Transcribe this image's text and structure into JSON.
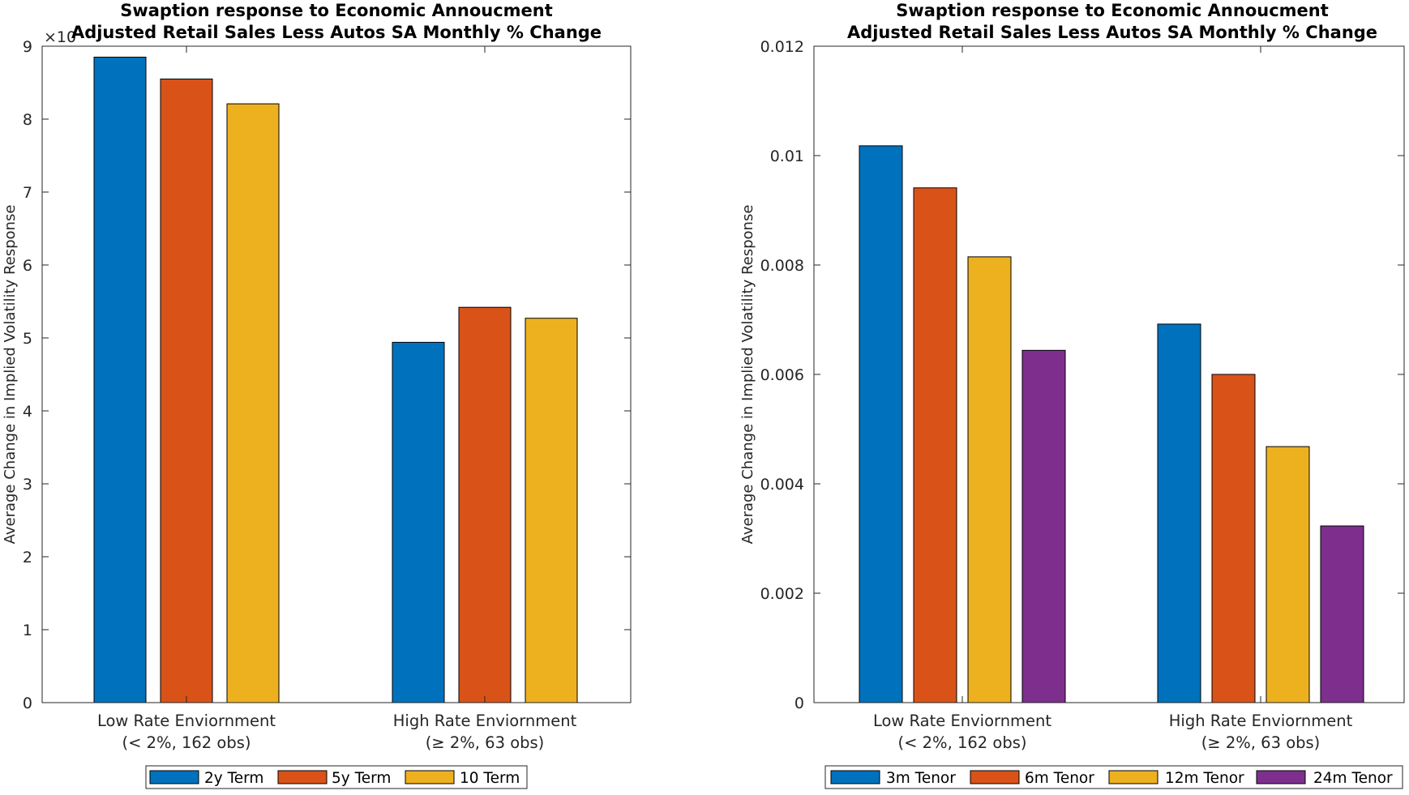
{
  "chart_data": [
    {
      "type": "bar",
      "title": [
        "Swaption response to Economic Annoucment",
        "Adjusted Retail Sales Less Autos SA Monthly % Change"
      ],
      "xlabel": "",
      "ylabel": "Average Change in Implied Volatility Response",
      "y_exponent_label": "×10",
      "categories": [
        [
          "Low Rate Enviornment",
          "(< 2%, 162 obs)"
        ],
        [
          "High Rate Enviornment",
          "(≥ 2%, 63 obs)"
        ]
      ],
      "ylim": [
        0,
        9
      ],
      "yticks": [
        0,
        1,
        2,
        3,
        4,
        5,
        6,
        7,
        8,
        9
      ],
      "ytick_labels": [
        "0",
        "1",
        "2",
        "3",
        "4",
        "5",
        "6",
        "7",
        "8",
        "9"
      ],
      "grid": false,
      "legend_position": "bottom",
      "series": [
        {
          "name": "2y Term",
          "color": "#0072BD",
          "values": [
            8.85,
            4.94
          ]
        },
        {
          "name": "5y Term",
          "color": "#D95319",
          "values": [
            8.55,
            5.42
          ]
        },
        {
          "name": "10 Term",
          "color": "#EDB120",
          "values": [
            8.21,
            5.27
          ]
        }
      ]
    },
    {
      "type": "bar",
      "title": [
        "Swaption response to Economic Annoucment",
        "Adjusted Retail Sales Less Autos SA Monthly % Change"
      ],
      "xlabel": "",
      "ylabel": "Average Change in Implied Volatility Response",
      "y_exponent_label": "",
      "categories": [
        [
          "Low Rate Enviornment",
          "(< 2%, 162 obs)"
        ],
        [
          "High Rate Enviornment",
          "(≥ 2%, 63 obs)"
        ]
      ],
      "ylim": [
        0,
        0.012
      ],
      "yticks": [
        0,
        0.002,
        0.004,
        0.006,
        0.008,
        0.01,
        0.012
      ],
      "ytick_labels": [
        "0",
        "0.002",
        "0.004",
        "0.006",
        "0.008",
        "0.01",
        "0.012"
      ],
      "grid": false,
      "legend_position": "bottom",
      "series": [
        {
          "name": "3m Tenor",
          "color": "#0072BD",
          "values": [
            0.01018,
            0.00692
          ]
        },
        {
          "name": "6m Tenor",
          "color": "#D95319",
          "values": [
            0.00941,
            0.006
          ]
        },
        {
          "name": "12m Tenor",
          "color": "#EDB120",
          "values": [
            0.00815,
            0.00468
          ]
        },
        {
          "name": "24m Tenor",
          "color": "#7E2F8E",
          "values": [
            0.00644,
            0.00323
          ]
        }
      ]
    }
  ]
}
